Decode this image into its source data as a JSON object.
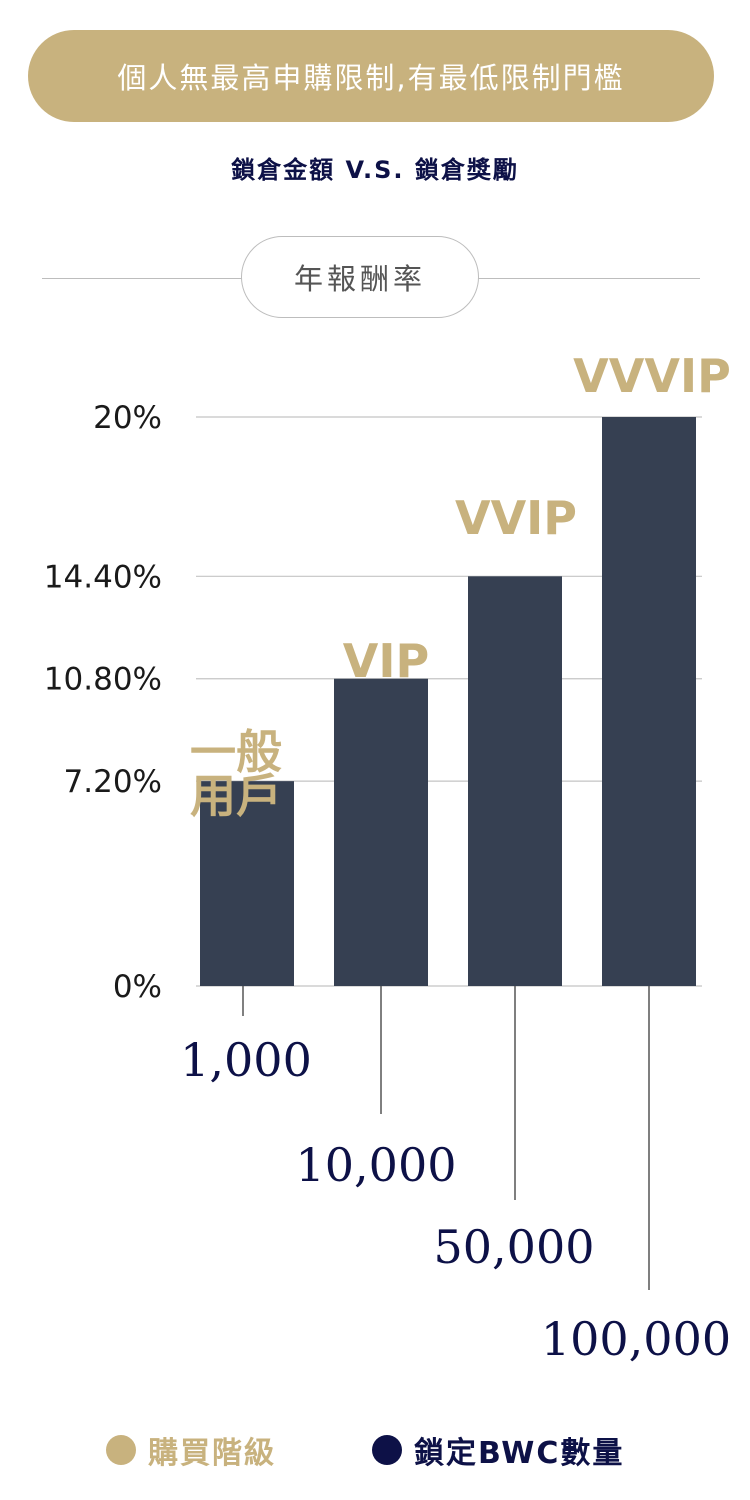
{
  "banner": "個人無最高申購限制,有最低限制門檻",
  "subtitle": "鎖倉金額  V.S.  鎖倉獎勵",
  "section_label": "年報酬率",
  "colors": {
    "gold": "#c8b27e",
    "bar": "#364052",
    "navy": "#0d1147",
    "grid": "#c4c4c4"
  },
  "chart_data": {
    "type": "bar",
    "title": "",
    "xlabel": "鎖定BWC數量",
    "ylabel": "年報酬率",
    "ylim": [
      0,
      20
    ],
    "y_ticks": [
      {
        "value": 0,
        "label": "0%"
      },
      {
        "value": 7.2,
        "label": "7.20%"
      },
      {
        "value": 10.8,
        "label": "10.80%"
      },
      {
        "value": 14.4,
        "label": "14.40%"
      },
      {
        "value": 20,
        "label": "20%"
      }
    ],
    "categories": [
      "1,000",
      "10,000",
      "50,000",
      "100,000"
    ],
    "tiers": [
      [
        "一般",
        "用戶"
      ],
      [
        "VIP"
      ],
      [
        "VVIP"
      ],
      [
        "VVVIP"
      ]
    ],
    "values": [
      7.2,
      10.8,
      14.4,
      20
    ],
    "grid": true
  },
  "legend": [
    {
      "label": "購買階級",
      "color": "#c8b27e"
    },
    {
      "label": "鎖定BWC數量",
      "color": "#0d1147"
    }
  ]
}
